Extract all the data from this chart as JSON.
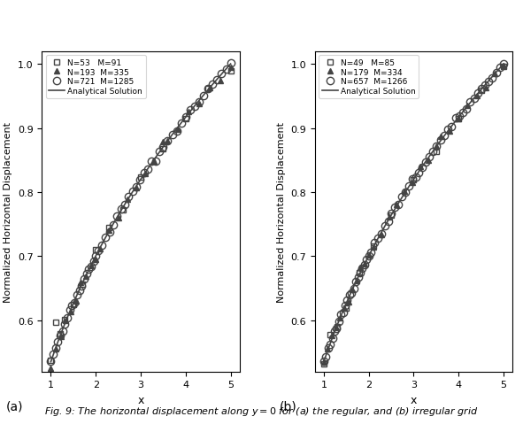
{
  "title": "Fig. 9: The horizontal displacement along $y = 0$ for (a) the regular, and (b) irregular grid",
  "panel_a": {
    "legend": [
      {
        "label": "N=53   M=91",
        "marker": "s"
      },
      {
        "label": "N=193  M=335",
        "marker": "^"
      },
      {
        "label": "N=721  M=1285",
        "marker": "o"
      }
    ],
    "analytical_label": "Analytical Solution"
  },
  "panel_b": {
    "legend": [
      {
        "label": "N=49   M=85",
        "marker": "s"
      },
      {
        "label": "N=179  M=334",
        "marker": "^"
      },
      {
        "label": "N=657  M=1266",
        "marker": "o"
      }
    ],
    "analytical_label": "Analytical Solution"
  },
  "xlabel": "x",
  "ylabel": "Normalized Horizontal Displacement",
  "xlim": [
    0.8,
    5.2
  ],
  "ylim_a": [
    0.52,
    1.02
  ],
  "ylim_b": [
    0.52,
    1.02
  ],
  "yticks": [
    0.6,
    0.7,
    0.8,
    0.9,
    1.0
  ],
  "xticks": [
    1,
    2,
    3,
    4,
    5
  ],
  "line_color": "#555555",
  "marker_color": "#555555",
  "marker_size_sq": 5,
  "marker_size_tri": 5,
  "marker_size_circ": 6,
  "fig_width": 5.91,
  "fig_height": 4.89
}
